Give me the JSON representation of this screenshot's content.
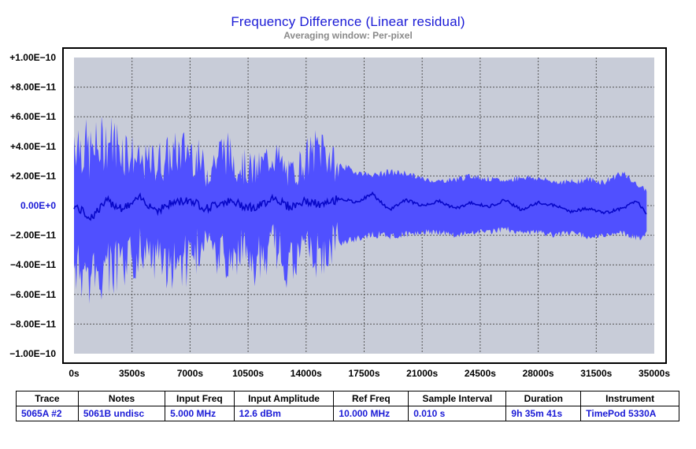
{
  "title": "Frequency Difference  (Linear residual)",
  "subtitle": "Averaging window: Per-pixel",
  "colors": {
    "plot_bg": "#c8ccd8",
    "envelope": "#5050ff",
    "mean_line": "#0808c8",
    "title": "#1a1ad6",
    "zero_label": "#1a1ad6"
  },
  "chart_data": {
    "type": "area",
    "title": "Frequency Difference  (Linear residual)",
    "subtitle": "Averaging window: Per-pixel",
    "xlim": [
      0,
      35000
    ],
    "ylim": [
      -1e-10,
      1e-10
    ],
    "x_ticks": [
      0,
      3500,
      7000,
      10500,
      14000,
      17500,
      21000,
      24500,
      28000,
      31500,
      35000
    ],
    "x_tick_labels": [
      "0s",
      "3500s",
      "7000s",
      "10500s",
      "14000s",
      "17500s",
      "21000s",
      "24500s",
      "28000s",
      "31500s",
      "35000s"
    ],
    "y_ticks": [
      1e-10,
      8e-11,
      6e-11,
      4e-11,
      2e-11,
      0,
      -2e-11,
      -4e-11,
      -6e-11,
      -8e-11,
      -1e-10
    ],
    "y_tick_labels": [
      "+1.00E−10",
      "+8.00E−11",
      "+6.00E−11",
      "+4.00E−11",
      "+2.00E−11",
      "0.00E+0",
      "−2.00E−11",
      "−4.00E−11",
      "−6.00E−11",
      "−8.00E−11",
      "−1.00E−10"
    ],
    "grid": true,
    "x_data_end": 34541,
    "series": [
      {
        "kind": "envelope",
        "x": [
          0,
          1000,
          2000,
          3000,
          4000,
          5000,
          6000,
          7000,
          8000,
          9000,
          10000,
          11000,
          12000,
          13000,
          14000,
          15000,
          16000,
          17000,
          18000,
          19000,
          20000,
          21000,
          22000,
          23000,
          24000,
          25000,
          26000,
          27000,
          28000,
          29000,
          30000,
          31000,
          32000,
          33000,
          34000,
          34541
        ],
        "upper": [
          7e-11,
          5.5e-11,
          6.5e-11,
          6e-11,
          4e-11,
          4.5e-11,
          5e-11,
          5.5e-11,
          3.5e-11,
          5.5e-11,
          4e-11,
          3.5e-11,
          5e-11,
          3e-11,
          4.5e-11,
          6e-11,
          3e-11,
          2.5e-11,
          2.2e-11,
          2.5e-11,
          2.4e-11,
          2e-11,
          1.8e-11,
          2e-11,
          2.2e-11,
          2e-11,
          1.8e-11,
          2.2e-11,
          2e-11,
          1.8e-11,
          1.8e-11,
          2e-11,
          1.8e-11,
          2.5e-11,
          1.5e-11,
          1.2e-11
        ],
        "lower": [
          -6e-11,
          -7e-11,
          -6.5e-11,
          -6.5e-11,
          -4.5e-11,
          -5.5e-11,
          -6e-11,
          -5.5e-11,
          -3.5e-11,
          -6e-11,
          -4.5e-11,
          -6e-11,
          -4e-11,
          -6e-11,
          -4.5e-11,
          -5.5e-11,
          -3e-11,
          -2.5e-11,
          -2.2e-11,
          -2.3e-11,
          -2.2e-11,
          -2e-11,
          -2e-11,
          -2.2e-11,
          -2e-11,
          -2e-11,
          -1.8e-11,
          -2e-11,
          -2e-11,
          -2.2e-11,
          -2e-11,
          -2.3e-11,
          -2.2e-11,
          -2e-11,
          -2.5e-11,
          -2e-11
        ]
      },
      {
        "kind": "mean",
        "x": [
          0,
          1000,
          2000,
          3000,
          4000,
          5000,
          6000,
          7000,
          8000,
          9000,
          10000,
          11000,
          12000,
          13000,
          14000,
          15000,
          16000,
          17000,
          18000,
          19000,
          20000,
          21000,
          22000,
          23000,
          24000,
          25000,
          26000,
          27000,
          28000,
          29000,
          30000,
          31000,
          32000,
          33000,
          34000,
          34541
        ],
        "values": [
          0,
          -8e-12,
          3e-12,
          -2e-12,
          5e-12,
          -3e-12,
          2e-12,
          4e-12,
          -2e-12,
          3e-12,
          1e-12,
          -2e-12,
          6e-12,
          -1e-12,
          3e-12,
          0,
          5e-12,
          2e-12,
          8e-12,
          -3e-12,
          4e-12,
          0,
          3e-12,
          -2e-12,
          2e-12,
          -1e-12,
          4e-12,
          -3e-12,
          2e-12,
          0,
          -4e-12,
          -2e-12,
          -5e-12,
          -2e-12,
          3e-12,
          -6e-12
        ]
      }
    ]
  },
  "table": {
    "headers": [
      "Trace",
      "Notes",
      "Input Freq",
      "Input Amplitude",
      "Ref Freq",
      "Sample Interval",
      "Duration",
      "Instrument"
    ],
    "row": [
      "5065A #2",
      "5061B undisc",
      "5.000 MHz",
      "12.6 dBm",
      "10.000 MHz",
      "0.010 s",
      "9h 35m 41s",
      "TimePod 5330A"
    ]
  }
}
